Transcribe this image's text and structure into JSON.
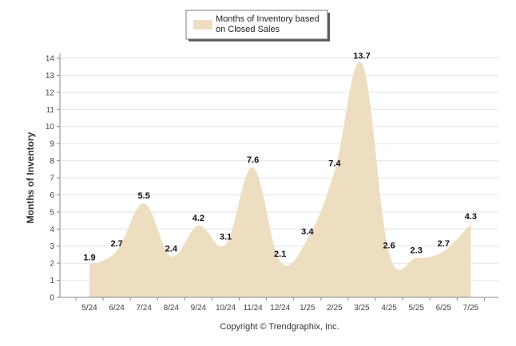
{
  "chart_data": {
    "type": "area",
    "categories": [
      "5/24",
      "6/24",
      "7/24",
      "8/24",
      "9/24",
      "10/24",
      "11/24",
      "12/24",
      "1/25",
      "2/25",
      "3/25",
      "4/25",
      "5/25",
      "6/25",
      "7/25"
    ],
    "series": [
      {
        "name": "Months of Inventory based on Closed Sales",
        "values": [
          1.9,
          2.7,
          5.5,
          2.4,
          4.2,
          3.1,
          7.6,
          2.1,
          3.4,
          7.4,
          13.7,
          2.6,
          2.3,
          2.7,
          4.3
        ],
        "color": "#eddec2"
      }
    ],
    "ylabel": "Months of Inventory",
    "xlabel": "",
    "ylim": [
      0,
      14
    ],
    "yticks": [
      0,
      1,
      2,
      3,
      4,
      5,
      6,
      7,
      8,
      9,
      10,
      11,
      12,
      13,
      14
    ],
    "grid": true,
    "legend_position": "top",
    "legend_lines": [
      "Months of Inventory based",
      "on Closed Sales"
    ],
    "data_labels": [
      "1.9",
      "2.7",
      "5.5",
      "2.4",
      "4.2",
      "3.1",
      "7.6",
      "2.1",
      "3.4",
      "7.4",
      "13.7",
      "2.6",
      "2.3",
      "2.7",
      "4.3"
    ],
    "footer": "Copyright © Trendgraphix, Inc."
  }
}
